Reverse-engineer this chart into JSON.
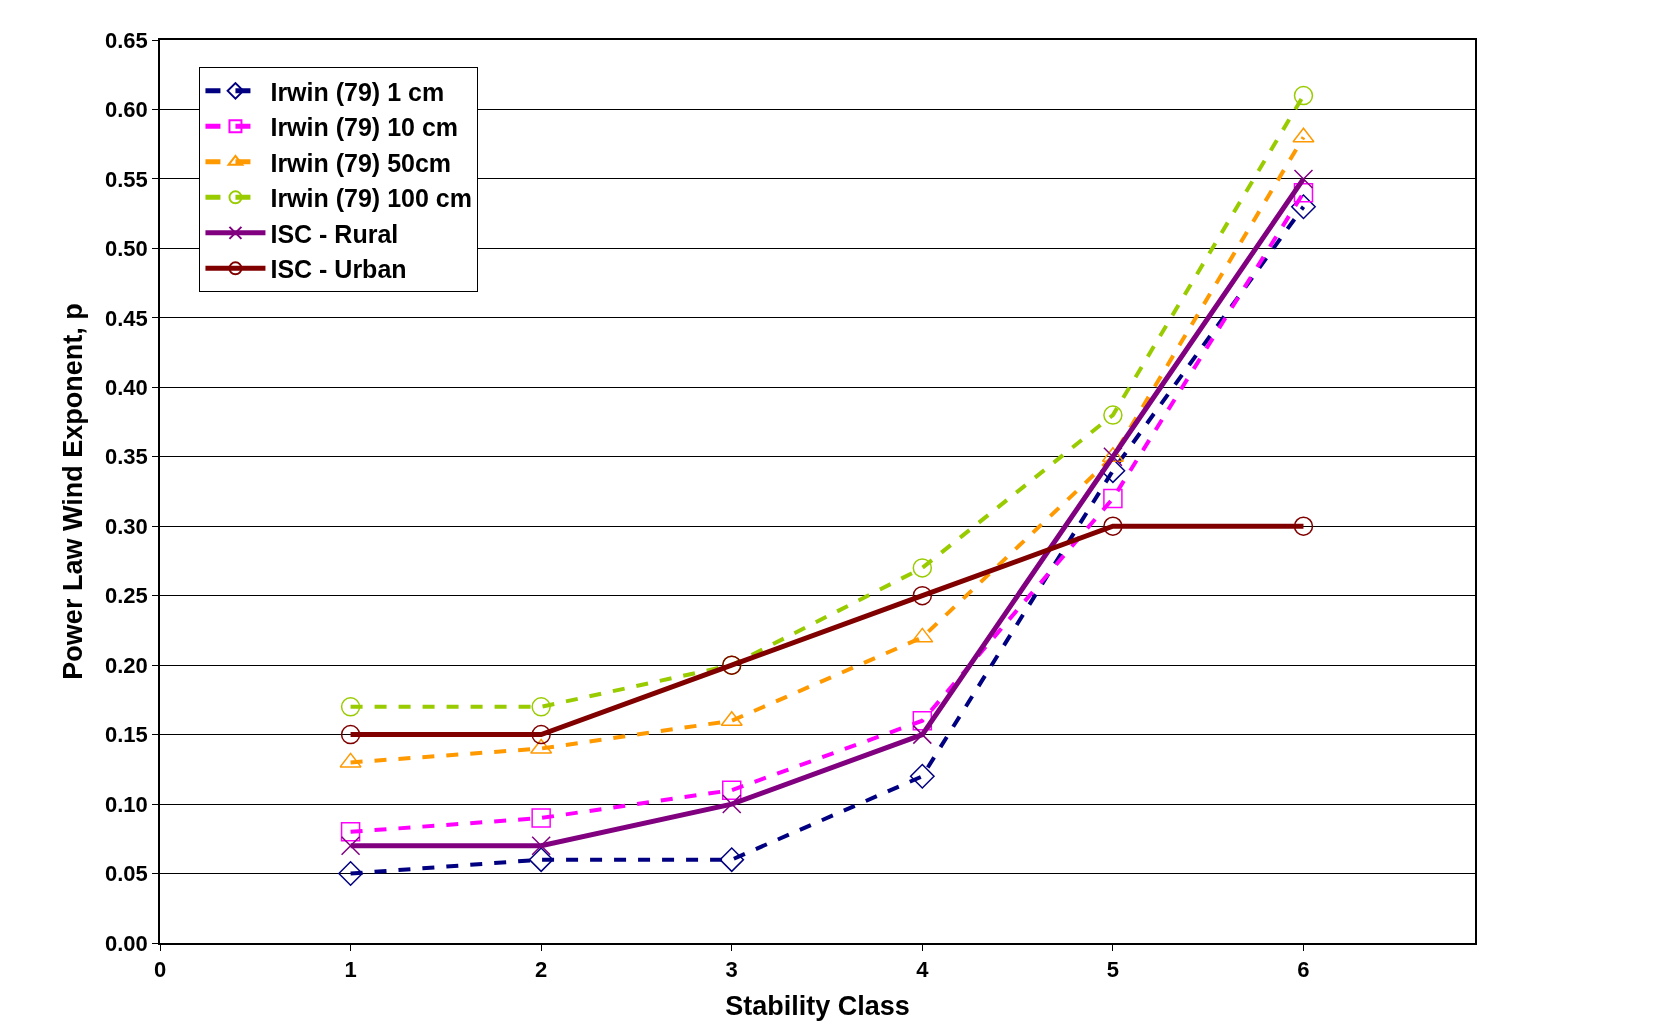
{
  "chart_data": {
    "type": "line",
    "xlabel": "Stability Class",
    "ylabel": "Power Law Wind Exponent, p",
    "x": [
      1,
      2,
      3,
      4,
      5,
      6
    ],
    "series": [
      {
        "name": "Irwin (79) 1 cm",
        "color": "#000080",
        "marker": "diamond",
        "line_style": "dashed",
        "values": [
          0.05,
          0.06,
          0.06,
          0.12,
          0.34,
          0.53
        ]
      },
      {
        "name": "Irwin (79) 10 cm",
        "color": "#ff00ff",
        "marker": "square",
        "line_style": "dashed",
        "values": [
          0.08,
          0.09,
          0.11,
          0.16,
          0.32,
          0.54
        ]
      },
      {
        "name": "Irwin (79) 50cm",
        "color": "#ff9900",
        "marker": "triangle",
        "line_style": "dashed",
        "values": [
          0.13,
          0.14,
          0.16,
          0.22,
          0.35,
          0.58
        ]
      },
      {
        "name": "Irwin (79) 100 cm",
        "color": "#99cc00",
        "marker": "circle",
        "line_style": "dashed",
        "values": [
          0.17,
          0.17,
          0.2,
          0.27,
          0.38,
          0.61
        ]
      },
      {
        "name": "ISC - Rural",
        "color": "#800080",
        "marker": "cross",
        "line_style": "solid",
        "values": [
          0.07,
          0.07,
          0.1,
          0.15,
          0.35,
          0.55
        ]
      },
      {
        "name": "ISC - Urban",
        "color": "#800000",
        "marker": "circle",
        "line_style": "solid",
        "values": [
          0.15,
          0.15,
          0.2,
          0.25,
          0.3,
          0.3
        ]
      }
    ],
    "xlim": [
      0,
      6.9
    ],
    "xticks": [
      0,
      1,
      2,
      3,
      4,
      5,
      6
    ],
    "ylim": [
      0,
      0.65
    ],
    "yticks": [
      {
        "value": 0,
        "label": "0.00"
      },
      {
        "value": 0.05,
        "label": "0.05"
      },
      {
        "value": 0.1,
        "label": "0.10"
      },
      {
        "value": 0.15,
        "label": "0.15"
      },
      {
        "value": 0.2,
        "label": "0.20"
      },
      {
        "value": 0.25,
        "label": "0.25"
      },
      {
        "value": 0.3,
        "label": "0.30"
      },
      {
        "value": 0.35,
        "label": "0.35"
      },
      {
        "value": 0.4,
        "label": "0.40"
      },
      {
        "value": 0.45,
        "label": "0.45"
      },
      {
        "value": 0.5,
        "label": "0.50"
      },
      {
        "value": 0.55,
        "label": "0.55"
      },
      {
        "value": 0.6,
        "label": "0.60"
      },
      {
        "value": 0.65,
        "label": "0.65"
      }
    ],
    "grid": "y",
    "legend": "top left"
  }
}
